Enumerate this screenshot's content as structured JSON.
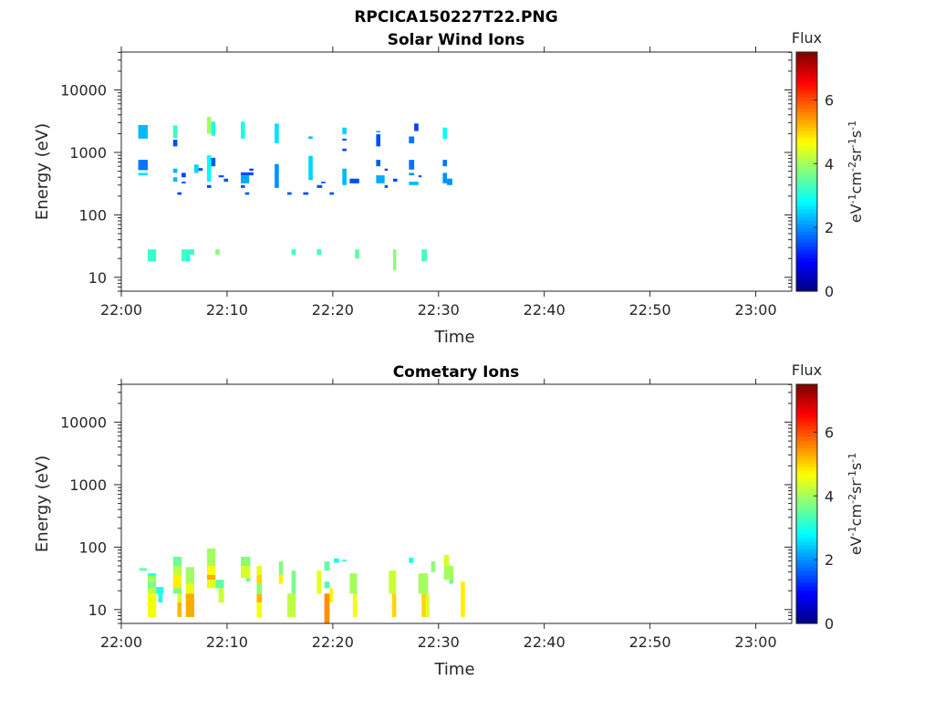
{
  "figure": {
    "title": "RPCICA150227T22.PNG"
  },
  "chart_data": [
    {
      "type": "heatmap",
      "title": "Solar Wind Ions",
      "xlabel": "Time",
      "ylabel": "Energy (eV)",
      "x_units": "minutes after 22:00",
      "xlim": [
        0,
        63.4
      ],
      "yscale": "log",
      "ylim": [
        6,
        40500
      ],
      "xticks": [
        0,
        10,
        20,
        30,
        40,
        50,
        60
      ],
      "xtick_labels": [
        "22:00",
        "22:10",
        "22:20",
        "22:30",
        "22:40",
        "22:50",
        "23:00"
      ],
      "yticks": [
        10,
        100,
        1000,
        10000
      ],
      "ytick_labels": [
        "10",
        "100",
        "1000",
        "10000"
      ],
      "colorbar": {
        "title": "Flux",
        "label_parts": [
          "eV",
          "-1",
          "cm",
          "-2",
          "sr",
          "-1",
          "s",
          "-1"
        ],
        "clim": [
          0,
          7.5
        ],
        "ticks": [
          0,
          2,
          4,
          6
        ],
        "tick_labels": [
          "0",
          "2",
          "4",
          "6"
        ],
        "colormap": "jet"
      },
      "blocks_format": [
        "t_start_min",
        "t_end_min",
        "energy_low_eV",
        "energy_high_eV",
        "flux"
      ],
      "blocks": [
        [
          1.6,
          2.5,
          1660,
          2750,
          2.3
        ],
        [
          1.6,
          2.5,
          520,
          760,
          1.8
        ],
        [
          1.6,
          2.5,
          430,
          470,
          2.6
        ],
        [
          4.9,
          5.3,
          1700,
          2700,
          3.2
        ],
        [
          4.9,
          5.3,
          1250,
          1600,
          1.5
        ],
        [
          4.9,
          5.3,
          470,
          550,
          2.3
        ],
        [
          4.9,
          5.3,
          340,
          400,
          2.3
        ],
        [
          5.7,
          6.1,
          400,
          470,
          1.4
        ],
        [
          5.7,
          6.1,
          320,
          340,
          1.5
        ],
        [
          5.3,
          5.7,
          210,
          230,
          1.4
        ],
        [
          6.9,
          7.3,
          470,
          640,
          2.5
        ],
        [
          7.3,
          7.7,
          510,
          560,
          1.5
        ],
        [
          8.1,
          8.5,
          2000,
          3700,
          4.0
        ],
        [
          8.5,
          8.9,
          1850,
          3100,
          3.0
        ],
        [
          8.1,
          8.5,
          340,
          900,
          2.8
        ],
        [
          8.5,
          8.9,
          600,
          820,
          1.6
        ],
        [
          8.1,
          8.5,
          270,
          300,
          1.5
        ],
        [
          9.2,
          9.7,
          400,
          430,
          1.5
        ],
        [
          9.7,
          10.1,
          340,
          380,
          1.5
        ],
        [
          11.3,
          11.7,
          1660,
          3100,
          3.0
        ],
        [
          11.3,
          12.5,
          430,
          480,
          1.5
        ],
        [
          11.3,
          12.1,
          320,
          430,
          2.2
        ],
        [
          12.1,
          12.5,
          510,
          550,
          1.4
        ],
        [
          11.3,
          11.7,
          270,
          300,
          1.6
        ],
        [
          11.7,
          12.1,
          210,
          230,
          1.6
        ],
        [
          14.5,
          14.9,
          1400,
          2900,
          2.6
        ],
        [
          14.5,
          14.9,
          270,
          650,
          2.0
        ],
        [
          15.7,
          16.1,
          210,
          230,
          1.5
        ],
        [
          17.2,
          17.7,
          210,
          230,
          1.5
        ],
        [
          17.7,
          18.1,
          1650,
          1800,
          2.3
        ],
        [
          17.7,
          18.1,
          360,
          880,
          2.5
        ],
        [
          18.5,
          19.0,
          270,
          300,
          1.5
        ],
        [
          18.9,
          19.3,
          320,
          340,
          1.5
        ],
        [
          19.7,
          20.1,
          210,
          230,
          1.5
        ],
        [
          20.9,
          21.3,
          1950,
          2500,
          2.5
        ],
        [
          20.9,
          21.3,
          1550,
          1660,
          1.5
        ],
        [
          20.9,
          21.3,
          1050,
          1150,
          1.5
        ],
        [
          20.9,
          21.3,
          300,
          550,
          2.3
        ],
        [
          21.6,
          22.5,
          320,
          380,
          1.5
        ],
        [
          24.1,
          24.5,
          2100,
          2200,
          2.0
        ],
        [
          24.1,
          24.5,
          1250,
          1950,
          1.5
        ],
        [
          24.1,
          24.5,
          600,
          760,
          1.6
        ],
        [
          24.1,
          24.9,
          320,
          430,
          2.2
        ],
        [
          24.9,
          25.2,
          510,
          550,
          1.4
        ],
        [
          24.9,
          25.2,
          270,
          300,
          1.5
        ],
        [
          25.7,
          26.1,
          340,
          380,
          1.5
        ],
        [
          27.7,
          28.1,
          2200,
          2900,
          1.4
        ],
        [
          27.2,
          27.7,
          1400,
          1800,
          1.8
        ],
        [
          27.2,
          27.7,
          530,
          760,
          1.8
        ],
        [
          27.2,
          27.7,
          430,
          470,
          2.0
        ],
        [
          27.2,
          28.1,
          300,
          340,
          2.3
        ],
        [
          28.1,
          28.4,
          400,
          430,
          1.5
        ],
        [
          30.4,
          30.8,
          1650,
          2500,
          2.8
        ],
        [
          30.4,
          30.8,
          600,
          760,
          1.8
        ],
        [
          30.4,
          30.8,
          320,
          470,
          2.0
        ],
        [
          30.8,
          31.3,
          300,
          380,
          2.0
        ],
        [
          2.5,
          3.3,
          18,
          28,
          3.2
        ],
        [
          5.7,
          6.1,
          18,
          28,
          3.3
        ],
        [
          6.1,
          6.9,
          23,
          28,
          3.2
        ],
        [
          6.1,
          6.5,
          18,
          23,
          3.0
        ],
        [
          8.9,
          9.3,
          23,
          28,
          3.8
        ],
        [
          16.1,
          16.5,
          23,
          28,
          3.2
        ],
        [
          18.5,
          18.9,
          23,
          28,
          3.2
        ],
        [
          22.1,
          22.5,
          20,
          28,
          3.5
        ],
        [
          25.7,
          26.0,
          13,
          28,
          3.8
        ],
        [
          28.4,
          28.9,
          18,
          28,
          3.3
        ]
      ]
    },
    {
      "type": "heatmap",
      "title": "Cometary Ions",
      "xlabel": "Time",
      "ylabel": "Energy (eV)",
      "x_units": "minutes after 22:00",
      "xlim": [
        0,
        63.4
      ],
      "yscale": "log",
      "ylim": [
        6,
        40500
      ],
      "xticks": [
        0,
        10,
        20,
        30,
        40,
        50,
        60
      ],
      "xtick_labels": [
        "22:00",
        "22:10",
        "22:20",
        "22:30",
        "22:40",
        "22:50",
        "23:00"
      ],
      "yticks": [
        10,
        100,
        1000,
        10000
      ],
      "ytick_labels": [
        "10",
        "100",
        "1000",
        "10000"
      ],
      "colorbar": {
        "title": "Flux",
        "label_parts": [
          "eV",
          "-1",
          "cm",
          "-2",
          "sr",
          "-1",
          "s",
          "-1"
        ],
        "clim": [
          0,
          7.5
        ],
        "ticks": [
          0,
          2,
          4,
          6
        ],
        "tick_labels": [
          "0",
          "2",
          "4",
          "6"
        ],
        "colormap": "jet"
      },
      "blocks_format": [
        "t_start_min",
        "t_end_min",
        "energy_low_eV",
        "energy_high_eV",
        "flux"
      ],
      "blocks": [
        [
          1.7,
          2.4,
          42,
          46,
          3.5
        ],
        [
          2.5,
          3.3,
          35,
          38,
          3.0
        ],
        [
          2.5,
          3.3,
          28,
          35,
          4.0
        ],
        [
          2.5,
          3.3,
          22,
          28,
          3.7
        ],
        [
          2.5,
          3.3,
          18,
          22,
          4.2
        ],
        [
          2.5,
          3.3,
          7.6,
          18,
          4.6
        ],
        [
          3.3,
          4.0,
          18,
          23,
          3.0
        ],
        [
          3.5,
          3.9,
          13,
          18,
          3.0
        ],
        [
          4.9,
          5.7,
          50,
          70,
          3.6
        ],
        [
          4.9,
          5.7,
          35,
          50,
          4.2
        ],
        [
          4.9,
          5.7,
          22,
          35,
          4.8
        ],
        [
          4.9,
          5.7,
          18,
          22,
          3.7
        ],
        [
          5.3,
          5.7,
          13,
          18,
          4.4
        ],
        [
          5.3,
          5.7,
          7.6,
          13,
          5.2
        ],
        [
          6.1,
          6.9,
          26,
          48,
          4.0
        ],
        [
          6.1,
          6.9,
          18,
          26,
          4.5
        ],
        [
          6.1,
          6.9,
          7.6,
          18,
          5.3
        ],
        [
          8.1,
          8.9,
          50,
          95,
          4.0
        ],
        [
          8.1,
          8.9,
          36,
          50,
          4.6
        ],
        [
          8.1,
          8.9,
          30,
          36,
          5.3
        ],
        [
          8.1,
          8.9,
          22,
          30,
          4.5
        ],
        [
          8.9,
          9.7,
          22,
          30,
          3.5
        ],
        [
          9.2,
          9.7,
          13,
          22,
          4.3
        ],
        [
          11.3,
          12.2,
          50,
          70,
          3.8
        ],
        [
          11.3,
          12.2,
          32,
          50,
          4.4
        ],
        [
          11.8,
          12.2,
          28,
          32,
          3.6
        ],
        [
          12.8,
          13.3,
          36,
          50,
          4.5
        ],
        [
          12.8,
          13.3,
          26,
          36,
          5.0
        ],
        [
          12.8,
          13.3,
          18,
          26,
          3.8
        ],
        [
          12.8,
          13.3,
          13,
          18,
          5.2
        ],
        [
          12.8,
          13.3,
          7.6,
          13,
          4.6
        ],
        [
          14.9,
          15.3,
          36,
          59,
          3.8
        ],
        [
          14.9,
          15.3,
          26,
          36,
          4.8
        ],
        [
          15.7,
          16.5,
          7.6,
          18,
          4.2
        ],
        [
          16.1,
          16.5,
          18,
          42,
          3.7
        ],
        [
          18.5,
          18.9,
          18,
          42,
          4.5
        ],
        [
          19.2,
          19.7,
          42,
          59,
          3.5
        ],
        [
          19.2,
          19.7,
          22,
          28,
          3.4
        ],
        [
          19.2,
          19.7,
          6,
          18,
          5.5
        ],
        [
          19.7,
          20.0,
          13,
          22,
          4.8
        ],
        [
          20.1,
          20.6,
          56,
          66,
          3.0
        ],
        [
          20.9,
          21.3,
          59,
          63,
          3.2
        ],
        [
          21.6,
          22.3,
          18,
          38,
          4.0
        ],
        [
          21.9,
          22.3,
          7.6,
          18,
          4.6
        ],
        [
          25.3,
          26.0,
          18,
          42,
          4.3
        ],
        [
          25.6,
          26.0,
          7.6,
          18,
          5.0
        ],
        [
          27.2,
          27.6,
          56,
          68,
          3.0
        ],
        [
          28.1,
          29.0,
          18,
          38,
          4.0
        ],
        [
          28.4,
          28.8,
          7.6,
          18,
          5.0
        ],
        [
          28.8,
          29.1,
          7.6,
          18,
          4.4
        ],
        [
          29.3,
          29.7,
          40,
          59,
          3.8
        ],
        [
          30.5,
          31.0,
          50,
          75,
          4.4
        ],
        [
          30.5,
          31.4,
          30,
          50,
          4.0
        ],
        [
          31.0,
          31.4,
          26,
          30,
          3.6
        ],
        [
          32.1,
          32.5,
          7.6,
          28,
          4.8
        ]
      ]
    }
  ]
}
